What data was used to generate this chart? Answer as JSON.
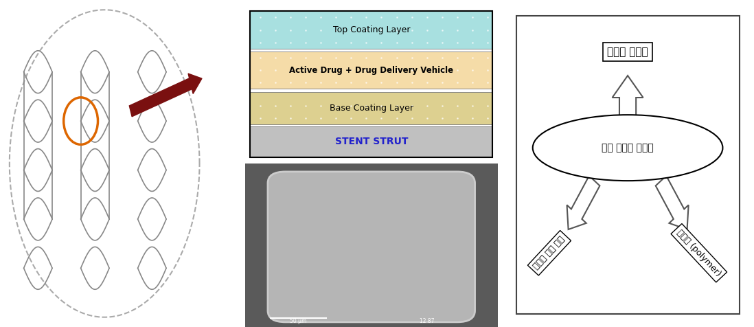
{
  "bg_color": "#ffffff",
  "layer_labels": [
    "Top Coating Layer",
    "Active Drug + Drug Delivery Vehicle",
    "Base Coating Layer",
    "STENT STRUT"
  ],
  "layer_colors": [
    "#a8e0e0",
    "#f5dca8",
    "#ddd090",
    "#c0c0c0"
  ],
  "layer_label_colors": [
    "#000000",
    "#000000",
    "#000000",
    "#2222cc"
  ],
  "layer_label_bold": [
    false,
    true,
    false,
    true
  ],
  "layer_fontsizes": [
    9,
    8.5,
    9,
    10
  ],
  "diagram_top_label": "적합한 스텐트",
  "diagram_ellipse_label": "약물 용출성 스텐트",
  "diagram_left_label": "재협착 방지 약물",
  "diagram_right_label": "중합제 (polymer)",
  "strut_color": "#888888",
  "orange_circle_color": "#dd6600",
  "arrow_color": "#7a1010",
  "sem_bg_color": "#5a5a5a",
  "sem_stent_color": "#b5b5b5",
  "sem_stent_edge": "#cccccc",
  "diagram_border_color": "#444444",
  "arrow_fill": "#ffffff",
  "arrow_edge": "#555555"
}
